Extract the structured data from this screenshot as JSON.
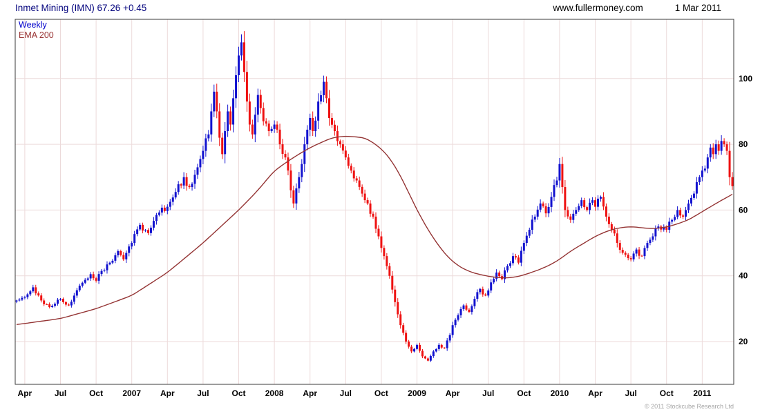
{
  "header": {
    "title": "Inmet Mining (IMN) 67.26 +0.45",
    "site": "www.fullermoney.com",
    "date": "1 Mar 2011"
  },
  "legend": {
    "timeframe": "Weekly",
    "ema": "EMA 200"
  },
  "footer": {
    "copyright": "© 2011 Stockcube Research Ltd"
  },
  "chart_data": {
    "type": "candlestick",
    "title": "Inmet Mining (IMN) weekly candlestick chart with 200-period EMA",
    "instrument": "Inmet Mining (IMN)",
    "last_price": 67.26,
    "change": "+0.45",
    "timeframe": "Weekly",
    "overlay": "EMA 200",
    "grid": true,
    "y_axis_side": "right",
    "y_ticks": [
      20,
      40,
      60,
      80,
      100
    ],
    "y_domain": [
      7,
      118
    ],
    "weeks_total": 262,
    "x_ticks": [
      {
        "week": 3,
        "label": "Apr"
      },
      {
        "week": 16,
        "label": "Jul"
      },
      {
        "week": 29,
        "label": "Oct"
      },
      {
        "week": 42,
        "label": "2007"
      },
      {
        "week": 55,
        "label": "Apr"
      },
      {
        "week": 68,
        "label": "Jul"
      },
      {
        "week": 81,
        "label": "Oct"
      },
      {
        "week": 94,
        "label": "2008"
      },
      {
        "week": 107,
        "label": "Apr"
      },
      {
        "week": 120,
        "label": "Jul"
      },
      {
        "week": 133,
        "label": "Oct"
      },
      {
        "week": 146,
        "label": "2009"
      },
      {
        "week": 159,
        "label": "Apr"
      },
      {
        "week": 172,
        "label": "Jul"
      },
      {
        "week": 185,
        "label": "Oct"
      },
      {
        "week": 198,
        "label": "2010"
      },
      {
        "week": 211,
        "label": "Apr"
      },
      {
        "week": 224,
        "label": "Jul"
      },
      {
        "week": 237,
        "label": "Oct"
      },
      {
        "week": 250,
        "label": "2011"
      }
    ],
    "price_anchors": [
      [
        0,
        32.5
      ],
      [
        3,
        33.5
      ],
      [
        6,
        36.5
      ],
      [
        9,
        32.5
      ],
      [
        12,
        30.5
      ],
      [
        16,
        33
      ],
      [
        19,
        31
      ],
      [
        23,
        37
      ],
      [
        27,
        40.5
      ],
      [
        29,
        38.5
      ],
      [
        31,
        41.5
      ],
      [
        34,
        44
      ],
      [
        37,
        47.5
      ],
      [
        39,
        45
      ],
      [
        42,
        50
      ],
      [
        45,
        55.5
      ],
      [
        48,
        53
      ],
      [
        51,
        58.5
      ],
      [
        55,
        61
      ],
      [
        58,
        65.5
      ],
      [
        61,
        70
      ],
      [
        63,
        67
      ],
      [
        66,
        73
      ],
      [
        68,
        78
      ],
      [
        70,
        83
      ],
      [
        71,
        90
      ],
      [
        72,
        96
      ],
      [
        73,
        90
      ],
      [
        74,
        82
      ],
      [
        75,
        77
      ],
      [
        76,
        84
      ],
      [
        77,
        90
      ],
      [
        78,
        86
      ],
      [
        79,
        94
      ],
      [
        80,
        101
      ],
      [
        81,
        107
      ],
      [
        82,
        111
      ],
      [
        83,
        102
      ],
      [
        84,
        93
      ],
      [
        85,
        86
      ],
      [
        86,
        83
      ],
      [
        87,
        89
      ],
      [
        88,
        95
      ],
      [
        89,
        91
      ],
      [
        90,
        87
      ],
      [
        92,
        84
      ],
      [
        94,
        86
      ],
      [
        96,
        80
      ],
      [
        98,
        76
      ],
      [
        100,
        66
      ],
      [
        101,
        62
      ],
      [
        103,
        70
      ],
      [
        105,
        80
      ],
      [
        107,
        88
      ],
      [
        108,
        84
      ],
      [
        110,
        93
      ],
      [
        112,
        99
      ],
      [
        113,
        94
      ],
      [
        114,
        88
      ],
      [
        116,
        84
      ],
      [
        118,
        80
      ],
      [
        120,
        76
      ],
      [
        122,
        72
      ],
      [
        124,
        69
      ],
      [
        126,
        65
      ],
      [
        128,
        62
      ],
      [
        130,
        58
      ],
      [
        132,
        52
      ],
      [
        134,
        46
      ],
      [
        136,
        40
      ],
      [
        138,
        32
      ],
      [
        140,
        25
      ],
      [
        142,
        20
      ],
      [
        144,
        17
      ],
      [
        146,
        19
      ],
      [
        148,
        15.5
      ],
      [
        150,
        14.2
      ],
      [
        152,
        17
      ],
      [
        154,
        19
      ],
      [
        156,
        18
      ],
      [
        158,
        22
      ],
      [
        159,
        25
      ],
      [
        161,
        28
      ],
      [
        163,
        31
      ],
      [
        165,
        29
      ],
      [
        167,
        33
      ],
      [
        169,
        36
      ],
      [
        171,
        34
      ],
      [
        173,
        38
      ],
      [
        175,
        41
      ],
      [
        177,
        39
      ],
      [
        179,
        43
      ],
      [
        181,
        46
      ],
      [
        183,
        44
      ],
      [
        185,
        50
      ],
      [
        187,
        54
      ],
      [
        189,
        58
      ],
      [
        191,
        62
      ],
      [
        193,
        59
      ],
      [
        195,
        64
      ],
      [
        197,
        69
      ],
      [
        198,
        74
      ],
      [
        199,
        67
      ],
      [
        200,
        60
      ],
      [
        202,
        57
      ],
      [
        204,
        60
      ],
      [
        206,
        63
      ],
      [
        208,
        60
      ],
      [
        210,
        63
      ],
      [
        211,
        61
      ],
      [
        213,
        64
      ],
      [
        215,
        58
      ],
      [
        217,
        54
      ],
      [
        219,
        50
      ],
      [
        221,
        47
      ],
      [
        224,
        45
      ],
      [
        226,
        48
      ],
      [
        228,
        46
      ],
      [
        230,
        50
      ],
      [
        232,
        52
      ],
      [
        234,
        55
      ],
      [
        237,
        54
      ],
      [
        239,
        57
      ],
      [
        241,
        60
      ],
      [
        243,
        58
      ],
      [
        245,
        62
      ],
      [
        247,
        65
      ],
      [
        249,
        70
      ],
      [
        250,
        72
      ],
      [
        252,
        76
      ],
      [
        253,
        79
      ],
      [
        254,
        77
      ],
      [
        255,
        80
      ],
      [
        256,
        78
      ],
      [
        257,
        81
      ],
      [
        258,
        80
      ],
      [
        259,
        78
      ],
      [
        260,
        70
      ],
      [
        261,
        67.26
      ]
    ],
    "ema_anchors": [
      [
        0,
        25.2
      ],
      [
        3,
        25.5
      ],
      [
        16,
        27
      ],
      [
        29,
        30
      ],
      [
        42,
        34
      ],
      [
        55,
        41
      ],
      [
        68,
        50
      ],
      [
        81,
        60
      ],
      [
        88,
        66
      ],
      [
        94,
        72
      ],
      [
        101,
        76
      ],
      [
        107,
        79
      ],
      [
        115,
        82
      ],
      [
        120,
        82.5
      ],
      [
        127,
        82
      ],
      [
        131,
        80
      ],
      [
        135,
        77
      ],
      [
        139,
        72
      ],
      [
        142,
        67
      ],
      [
        146,
        60
      ],
      [
        150,
        54
      ],
      [
        154,
        49
      ],
      [
        158,
        45
      ],
      [
        162,
        42.5
      ],
      [
        166,
        41
      ],
      [
        171,
        40
      ],
      [
        175,
        39.5
      ],
      [
        179,
        39.3
      ],
      [
        183,
        39.8
      ],
      [
        187,
        40.8
      ],
      [
        191,
        42
      ],
      [
        195,
        43.5
      ],
      [
        198,
        45
      ],
      [
        202,
        47.5
      ],
      [
        206,
        49.5
      ],
      [
        211,
        52
      ],
      [
        215,
        53.5
      ],
      [
        219,
        54.5
      ],
      [
        224,
        55
      ],
      [
        228,
        54.6
      ],
      [
        232,
        54.3
      ],
      [
        237,
        54.8
      ],
      [
        241,
        55.8
      ],
      [
        245,
        57
      ],
      [
        250,
        59.5
      ],
      [
        255,
        62
      ],
      [
        261,
        64.8
      ]
    ],
    "colors": {
      "up": "#1212cf",
      "down": "#ee1111",
      "ema": "#943434",
      "grid": "#ecdada",
      "border": "#3a3a3a",
      "title": "#00007c"
    }
  }
}
